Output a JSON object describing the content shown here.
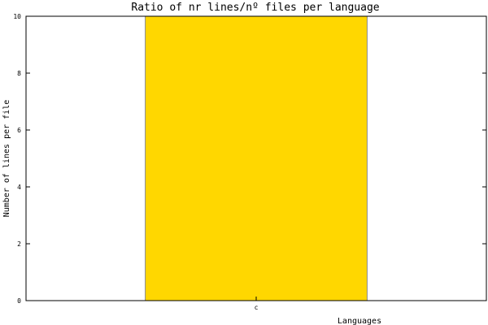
{
  "chart_data": {
    "type": "bar",
    "title": "Ratio of nr lines/nº files per language",
    "xlabel": "Languages",
    "ylabel": "Number of lines per file",
    "categories": [
      "c"
    ],
    "series": [
      {
        "values": [
          10
        ]
      }
    ],
    "ylim": [
      0,
      10
    ],
    "yticks": [
      0,
      2,
      4,
      6,
      8,
      10
    ],
    "grid": false,
    "legend": "none",
    "colors": {
      "bar": "#ffd700",
      "bar_edge": "#8a8a8a",
      "axis": "#000000",
      "background": "#ffffff"
    }
  }
}
